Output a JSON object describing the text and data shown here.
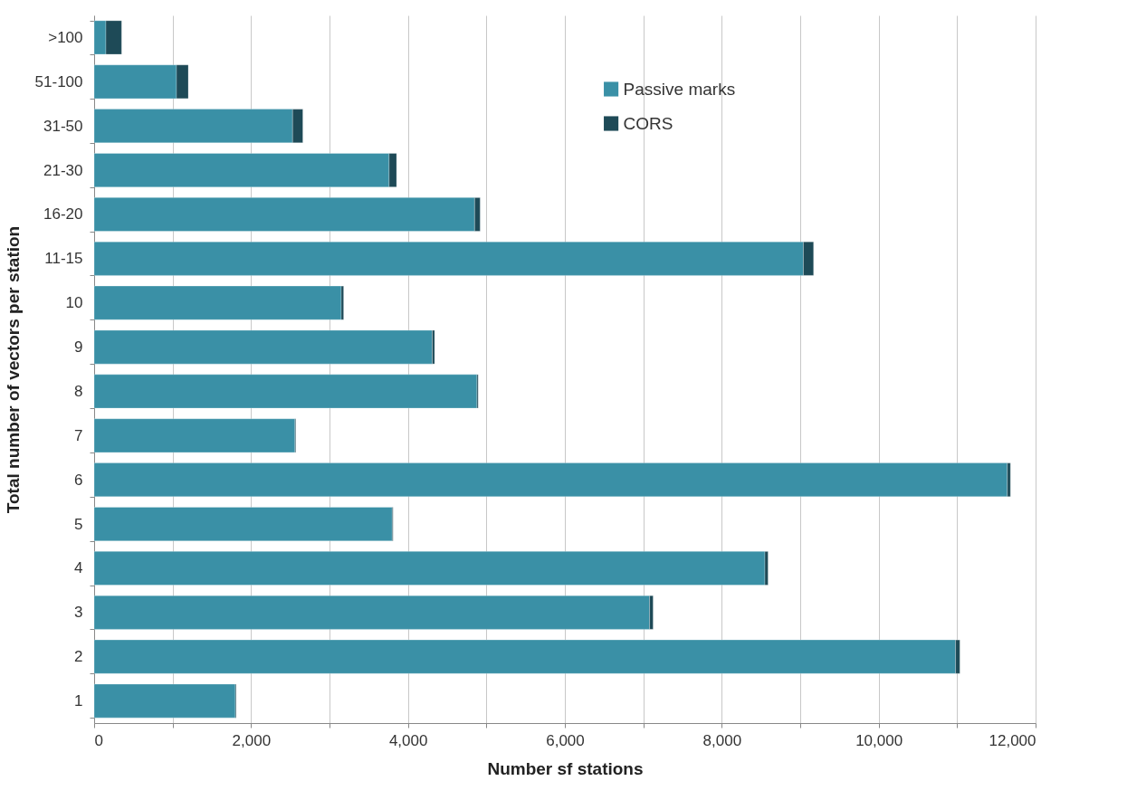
{
  "chart_data": {
    "type": "bar",
    "orientation": "horizontal",
    "stacked": true,
    "xlabel": "Number sf stations",
    "ylabel": "Total number of vectors per station",
    "categories": [
      ">100",
      "51-100",
      "31-50",
      "21-30",
      "16-20",
      "11-15",
      "10",
      "9",
      "8",
      "7",
      "6",
      "5",
      "4",
      "3",
      "2",
      "1"
    ],
    "series": [
      {
        "name": "Passive marks",
        "color": "#3a90a6",
        "values": [
          150,
          1050,
          2530,
          3760,
          4850,
          9040,
          3150,
          4310,
          4880,
          2560,
          11640,
          3800,
          8550,
          7080,
          10980,
          1800
        ]
      },
      {
        "name": "CORS",
        "color": "#1e4a57",
        "values": [
          200,
          150,
          130,
          95,
          70,
          130,
          30,
          30,
          15,
          10,
          40,
          10,
          40,
          45,
          55,
          10
        ]
      }
    ],
    "xlim": [
      0,
      12000
    ],
    "xticks": [
      {
        "value": 0,
        "label": "0"
      },
      {
        "value": 1000,
        "label": null
      },
      {
        "value": 2000,
        "label": "2,000"
      },
      {
        "value": 3000,
        "label": null
      },
      {
        "value": 4000,
        "label": "4,000"
      },
      {
        "value": 5000,
        "label": null
      },
      {
        "value": 6000,
        "label": "6,000"
      },
      {
        "value": 7000,
        "label": null
      },
      {
        "value": 8000,
        "label": "8,000"
      },
      {
        "value": 9000,
        "label": null
      },
      {
        "value": 10000,
        "label": "10,000"
      },
      {
        "value": 11000,
        "label": null
      },
      {
        "value": 12000,
        "label": "12,000"
      }
    ],
    "grid": "x",
    "legend": "top right"
  }
}
